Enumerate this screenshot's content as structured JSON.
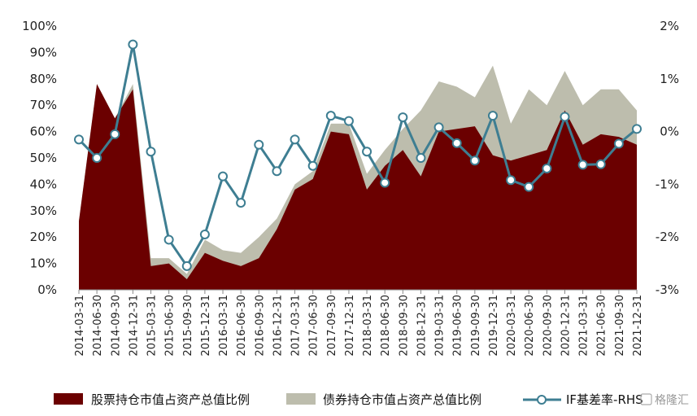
{
  "chart_data": {
    "type": "area",
    "categories": [
      "2014-03-31",
      "2014-06-30",
      "2014-09-30",
      "2014-12-31",
      "2015-03-31",
      "2015-06-30",
      "2015-09-30",
      "2015-12-31",
      "2016-03-31",
      "2016-06-30",
      "2016-09-30",
      "2016-12-31",
      "2017-03-31",
      "2017-06-30",
      "2017-09-30",
      "2017-12-31",
      "2018-03-31",
      "2018-06-30",
      "2018-09-30",
      "2018-12-31",
      "2019-03-31",
      "2019-06-30",
      "2019-09-30",
      "2019-12-31",
      "2020-03-31",
      "2020-06-30",
      "2020-09-30",
      "2020-12-31",
      "2021-03-31",
      "2021-06-30",
      "2021-09-30",
      "2021-12-31"
    ],
    "series": [
      {
        "name": "股票持仓市值占资产总值比例",
        "type": "area",
        "axis": "left",
        "color": "#6B0000",
        "values": [
          26,
          78,
          65,
          76,
          9,
          10,
          4,
          14,
          11,
          9,
          12,
          23,
          38,
          42,
          60,
          59,
          38,
          47,
          53,
          43,
          60,
          61,
          62,
          51,
          49,
          51,
          53,
          68,
          55,
          59,
          58,
          55
        ]
      },
      {
        "name": "债券持仓市值占资产总值比例",
        "type": "area",
        "axis": "left",
        "color": "#BDBDAD",
        "values": [
          26,
          78,
          65,
          78,
          12,
          12,
          6,
          19,
          15,
          14,
          20,
          27,
          40,
          45,
          63,
          63,
          44,
          53,
          61,
          68,
          79,
          77,
          73,
          85,
          63,
          76,
          70,
          83,
          70,
          76,
          76,
          68
        ]
      },
      {
        "name": "IF基差率-RHS",
        "type": "line",
        "axis": "right",
        "color": "#3E7E92",
        "values": [
          -0.15,
          -0.5,
          -0.05,
          1.65,
          -0.38,
          -2.05,
          -2.55,
          -1.95,
          -0.85,
          -1.35,
          -0.25,
          -0.75,
          -0.15,
          -0.65,
          0.3,
          0.2,
          -0.38,
          -0.97,
          0.27,
          -0.5,
          0.08,
          -0.22,
          -0.55,
          0.3,
          -0.92,
          -1.05,
          -0.7,
          0.28,
          -0.63,
          -0.62,
          -0.23,
          0.05
        ]
      }
    ],
    "left_axis": {
      "ylim": [
        0,
        100
      ],
      "ticks": [
        0,
        10,
        20,
        30,
        40,
        50,
        60,
        70,
        80,
        90,
        100
      ],
      "tick_labels": [
        "0%",
        "10%",
        "20%",
        "30%",
        "40%",
        "50%",
        "60%",
        "70%",
        "80%",
        "90%",
        "100%"
      ]
    },
    "right_axis": {
      "ylim": [
        -3,
        2
      ],
      "ticks": [
        -3,
        -2,
        -1,
        0,
        1,
        2
      ],
      "tick_labels": [
        "-3%",
        "-2%",
        "-1%",
        "0%",
        "1%",
        "2%"
      ]
    },
    "grid": false,
    "legend_position": "bottom"
  },
  "watermark": "格隆汇"
}
